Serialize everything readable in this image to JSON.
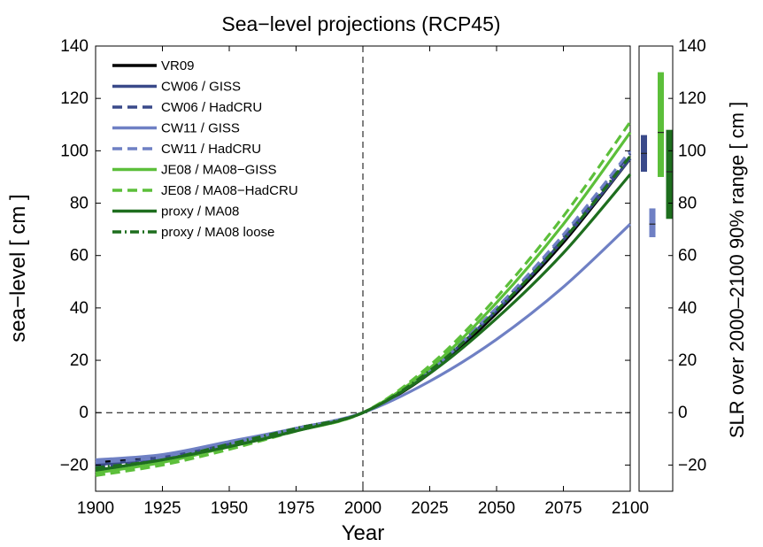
{
  "chart_data": {
    "type": "line",
    "title": "Sea−level projections (RCP45)",
    "xlabel": "Year",
    "ylabel": "sea−level [ cm ]",
    "right_ylabel": "SLR over 2000–2100  90% range [ cm ]",
    "xlim": [
      1900,
      2100
    ],
    "ylim": [
      -30,
      140
    ],
    "x_ticks": [
      1900,
      1925,
      1950,
      1975,
      2000,
      2025,
      2050,
      2075,
      2100
    ],
    "x_tick_labels": [
      "1900",
      "1925",
      "1950",
      "1975",
      "2000",
      "2025",
      "2050",
      "2075",
      "2100"
    ],
    "y_ticks": [
      -20,
      0,
      20,
      40,
      60,
      80,
      100,
      120,
      140
    ],
    "y_tick_labels": [
      "−20",
      "0",
      "20",
      "40",
      "60",
      "80",
      "100",
      "120",
      "140"
    ],
    "reference_lines": {
      "vertical_x": 2000,
      "horizontal_y": 0
    },
    "legend_position": "top-left",
    "grid": false,
    "x": [
      1900,
      1925,
      1950,
      1975,
      2000,
      2025,
      2050,
      2075,
      2100
    ],
    "series": [
      {
        "name": "VR09",
        "color": "#000000",
        "style": "solid",
        "values": [
          -19,
          -17,
          -12,
          -6,
          0,
          15,
          38,
          65,
          97
        ]
      },
      {
        "name": "CW06 / GISS",
        "color": "#3a4a8a",
        "style": "solid",
        "values": [
          -20,
          -17,
          -12,
          -6,
          0,
          16,
          39,
          66,
          97
        ]
      },
      {
        "name": "CW06 / HadCRU",
        "color": "#3a4a8a",
        "style": "dashed",
        "values": [
          -21,
          -18,
          -13,
          -6,
          0,
          16,
          40,
          67,
          99
        ]
      },
      {
        "name": "CW11 / GISS",
        "color": "#6f80c4",
        "style": "solid",
        "values": [
          -18,
          -16,
          -11,
          -6,
          0,
          12,
          28,
          48,
          72
        ]
      },
      {
        "name": "CW11 / HadCRU",
        "color": "#6f80c4",
        "style": "dashed",
        "values": [
          -19,
          -17,
          -12,
          -6,
          0,
          16,
          40,
          68,
          100
        ]
      },
      {
        "name": "JE08 / MA08−GISS",
        "color": "#5cbf3a",
        "style": "solid",
        "values": [
          -23,
          -19,
          -13,
          -7,
          0,
          17,
          42,
          72,
          107
        ]
      },
      {
        "name": "JE08 / MA08−HadCRU",
        "color": "#5cbf3a",
        "style": "dashed",
        "values": [
          -24,
          -20,
          -14,
          -7,
          0,
          18,
          44,
          75,
          111
        ]
      },
      {
        "name": "proxy / MA08",
        "color": "#1e6e1e",
        "style": "solid",
        "values": [
          -22,
          -18,
          -13,
          -7,
          0,
          15,
          36,
          61,
          91
        ]
      },
      {
        "name": "proxy / MA08 loose",
        "color": "#1e6e1e",
        "style": "dashdot",
        "values": [
          -21,
          -18,
          -12,
          -6,
          0,
          16,
          39,
          66,
          98
        ]
      }
    ],
    "ranges": [
      {
        "color": "#3a4a8a",
        "low": 92,
        "high": 106,
        "median": 99
      },
      {
        "color": "#6f80c4",
        "low": 67,
        "high": 78,
        "median": 72
      },
      {
        "color": "#5cbf3a",
        "low": 90,
        "high": 130,
        "median": 107
      },
      {
        "color": "#1e6e1e",
        "low": 74,
        "high": 108,
        "median": 92
      }
    ]
  }
}
